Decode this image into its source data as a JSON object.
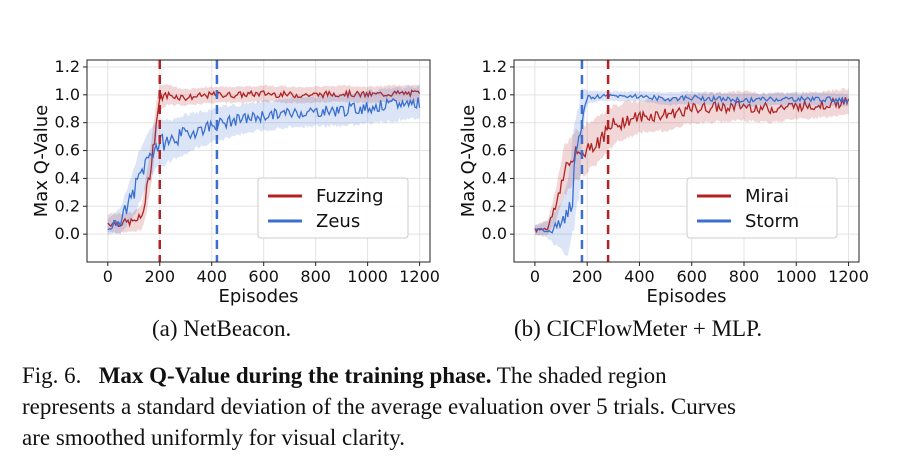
{
  "chart_data": [
    {
      "id": "a",
      "type": "line",
      "xlabel": "Episodes",
      "ylabel": "Max Q-Value",
      "xlim": [
        -80,
        1240
      ],
      "ylim": [
        -0.2,
        1.25
      ],
      "xticks": [
        "0",
        "200",
        "400",
        "600",
        "800",
        "1000",
        "1200"
      ],
      "xtick_values": [
        0,
        200,
        400,
        600,
        800,
        1000,
        1200
      ],
      "yticks": [
        "0.0",
        "0.2",
        "0.4",
        "0.6",
        "0.8",
        "1.0",
        "1.2"
      ],
      "ytick_values": [
        0.0,
        0.2,
        0.4,
        0.6,
        0.8,
        1.0,
        1.2
      ],
      "grid": true,
      "legend_position": "lower-right",
      "vlines": [
        {
          "x": 200,
          "color": "#b22222"
        },
        {
          "x": 420,
          "color": "#3a6fd0"
        }
      ],
      "series": [
        {
          "name": "Fuzzing",
          "color": "#b22222",
          "x": [
            0,
            50,
            100,
            130,
            150,
            170,
            185,
            200,
            230,
            300,
            400,
            500,
            600,
            700,
            800,
            900,
            1000,
            1100,
            1200
          ],
          "values": [
            0.08,
            0.08,
            0.09,
            0.12,
            0.3,
            0.55,
            0.78,
            0.98,
            1.0,
            0.98,
            1.0,
            1.0,
            1.01,
            1.0,
            1.0,
            1.01,
            1.0,
            1.01,
            1.01
          ],
          "std": [
            0.06,
            0.06,
            0.06,
            0.08,
            0.12,
            0.14,
            0.12,
            0.08,
            0.06,
            0.05,
            0.05,
            0.05,
            0.05,
            0.05,
            0.05,
            0.05,
            0.05,
            0.05,
            0.05
          ]
        },
        {
          "name": "Zeus",
          "color": "#3a6fd0",
          "x": [
            0,
            50,
            100,
            130,
            170,
            200,
            250,
            300,
            350,
            400,
            450,
            500,
            600,
            700,
            800,
            900,
            1000,
            1100,
            1200
          ],
          "values": [
            0.05,
            0.1,
            0.3,
            0.45,
            0.6,
            0.65,
            0.68,
            0.72,
            0.75,
            0.78,
            0.8,
            0.82,
            0.85,
            0.87,
            0.88,
            0.89,
            0.91,
            0.93,
            0.95
          ],
          "std": [
            0.05,
            0.08,
            0.15,
            0.16,
            0.15,
            0.14,
            0.13,
            0.12,
            0.11,
            0.1,
            0.1,
            0.09,
            0.09,
            0.09,
            0.09,
            0.1,
            0.1,
            0.1,
            0.1
          ]
        }
      ]
    },
    {
      "id": "b",
      "type": "line",
      "xlabel": "Episodes",
      "ylabel": "Max Q-Value",
      "xlim": [
        -80,
        1240
      ],
      "ylim": [
        -0.2,
        1.25
      ],
      "xticks": [
        "0",
        "200",
        "400",
        "600",
        "800",
        "1000",
        "1200"
      ],
      "xtick_values": [
        0,
        200,
        400,
        600,
        800,
        1000,
        1200
      ],
      "yticks": [
        "0.0",
        "0.2",
        "0.4",
        "0.6",
        "0.8",
        "1.0",
        "1.2"
      ],
      "ytick_values": [
        0.0,
        0.2,
        0.4,
        0.6,
        0.8,
        1.0,
        1.2
      ],
      "grid": true,
      "legend_position": "lower-right",
      "vlines": [
        {
          "x": 180,
          "color": "#3a6fd0"
        },
        {
          "x": 280,
          "color": "#b22222"
        }
      ],
      "series": [
        {
          "name": "Mirai",
          "color": "#b22222",
          "x": [
            0,
            50,
            80,
            110,
            150,
            200,
            250,
            300,
            350,
            400,
            450,
            500,
            600,
            700,
            800,
            900,
            1000,
            1100,
            1200
          ],
          "values": [
            0.03,
            0.05,
            0.2,
            0.45,
            0.55,
            0.62,
            0.68,
            0.78,
            0.82,
            0.84,
            0.85,
            0.86,
            0.9,
            0.91,
            0.92,
            0.9,
            0.92,
            0.93,
            0.95
          ],
          "std": [
            0.03,
            0.05,
            0.1,
            0.15,
            0.16,
            0.15,
            0.14,
            0.12,
            0.11,
            0.1,
            0.1,
            0.1,
            0.09,
            0.09,
            0.09,
            0.09,
            0.08,
            0.08,
            0.08
          ]
        },
        {
          "name": "Storm",
          "color": "#3a6fd0",
          "x": [
            0,
            50,
            100,
            130,
            150,
            170,
            180,
            190,
            200,
            250,
            300,
            400,
            500,
            600,
            700,
            800,
            900,
            1000,
            1100,
            1200
          ],
          "values": [
            0.03,
            0.03,
            0.05,
            0.15,
            0.4,
            0.62,
            0.85,
            0.95,
            0.98,
            0.99,
            0.99,
            0.99,
            0.97,
            0.98,
            0.97,
            0.96,
            0.97,
            0.97,
            0.97,
            0.96
          ],
          "std": [
            0.03,
            0.05,
            0.15,
            0.25,
            0.3,
            0.3,
            0.2,
            0.08,
            0.04,
            0.03,
            0.03,
            0.03,
            0.04,
            0.04,
            0.04,
            0.04,
            0.04,
            0.04,
            0.04,
            0.04
          ]
        }
      ]
    }
  ],
  "subcaptions": {
    "a": "(a) NetBeacon.",
    "b": "(b) CICFlowMeter + MLP."
  },
  "caption": {
    "label": "Fig. 6.",
    "bold": "Max Q-Value during the training phase.",
    "rest_line1": "The shaded region",
    "line2": "represents a standard deviation of the average evaluation over 5 trials. Curves",
    "line3": "are smoothed uniformly for visual clarity."
  }
}
